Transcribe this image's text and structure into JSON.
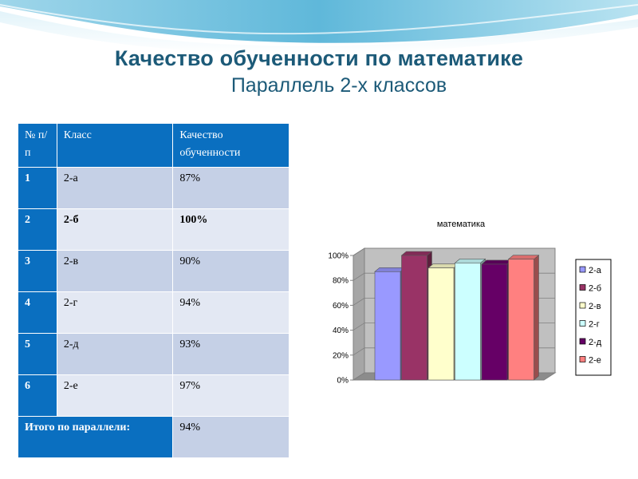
{
  "slide": {
    "title": "Качество обученности по математике",
    "subtitle": "Параллель 2-х классов"
  },
  "table": {
    "headers": [
      "№ п/п",
      "Класс",
      "Качество обученности"
    ],
    "rows": [
      {
        "num": "1",
        "class": "2-а",
        "quality": "87%"
      },
      {
        "num": "2",
        "class": "2-б",
        "quality": "100%"
      },
      {
        "num": "3",
        "class": "2-в",
        "quality": "90%"
      },
      {
        "num": "4",
        "class": "2-г",
        "quality": "94%"
      },
      {
        "num": "5",
        "class": "2-д",
        "quality": "93%"
      },
      {
        "num": "6",
        "class": "2-е",
        "quality": "97%"
      }
    ],
    "total_label": "Итого по параллели:",
    "total_value": "94%"
  },
  "chart_data": {
    "type": "bar",
    "title": "математика",
    "categories": [
      "2-а",
      "2-б",
      "2-в",
      "2-г",
      "2-д",
      "2-е"
    ],
    "values": [
      87,
      100,
      90,
      94,
      93,
      97
    ],
    "colors": [
      "#9999ff",
      "#993366",
      "#ffffcc",
      "#ccffff",
      "#660066",
      "#ff8080"
    ],
    "ylim": [
      0,
      100
    ],
    "yticks": [
      0,
      20,
      40,
      60,
      80,
      100
    ],
    "ytick_labels": [
      "0%",
      "20%",
      "40%",
      "60%",
      "80%",
      "100%"
    ],
    "grid": true,
    "legend": "right"
  }
}
